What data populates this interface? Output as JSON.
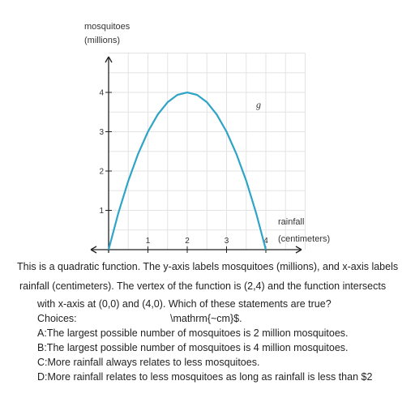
{
  "chart_data": {
    "type": "line",
    "function_label": "g",
    "ylabel": [
      "mosquitoes",
      "(millions)"
    ],
    "xlabel": [
      "rainfall",
      "(centimeters)"
    ],
    "x_ticks": [
      "1",
      "2",
      "3",
      "4"
    ],
    "y_ticks": [
      "1",
      "2",
      "3",
      "4"
    ],
    "xlim": [
      0,
      5
    ],
    "ylim": [
      0,
      5
    ],
    "grid": true,
    "series": [
      {
        "x": [
          0,
          0.25,
          0.5,
          0.75,
          1,
          1.25,
          1.5,
          1.75,
          2,
          2.25,
          2.5,
          2.75,
          3,
          3.25,
          3.5,
          3.75,
          4
        ],
        "y": [
          0,
          0.9375,
          1.75,
          2.4375,
          3,
          3.4375,
          3.75,
          3.9375,
          4,
          3.9375,
          3.75,
          3.4375,
          3,
          2.4375,
          1.75,
          0.9375,
          0
        ],
        "color": "#2fa4c7"
      }
    ]
  },
  "text": {
    "line1": "This is a quadratic function. The y-axis labels mosquitoes (millions), and x-axis labels",
    "line2": "rainfall (centimeters). The vertex of the function is (2,4) and the function intersects",
    "line3": "with x-axis at (0,0) and (4,0). Which of these statements are true?",
    "choices_label": "Choices:",
    "latex_fragment": "\\mathrm{~cm}$.",
    "choices": [
      "A:The largest possible number of mosquitoes is 2 million mosquitoes.",
      "B:The largest possible number of mosquitoes is 4 million mosquitoes.",
      "C:More rainfall always relates to less mosquitoes.",
      "D:More rainfall relates to less mosquitoes as long as rainfall is less than $2"
    ]
  }
}
